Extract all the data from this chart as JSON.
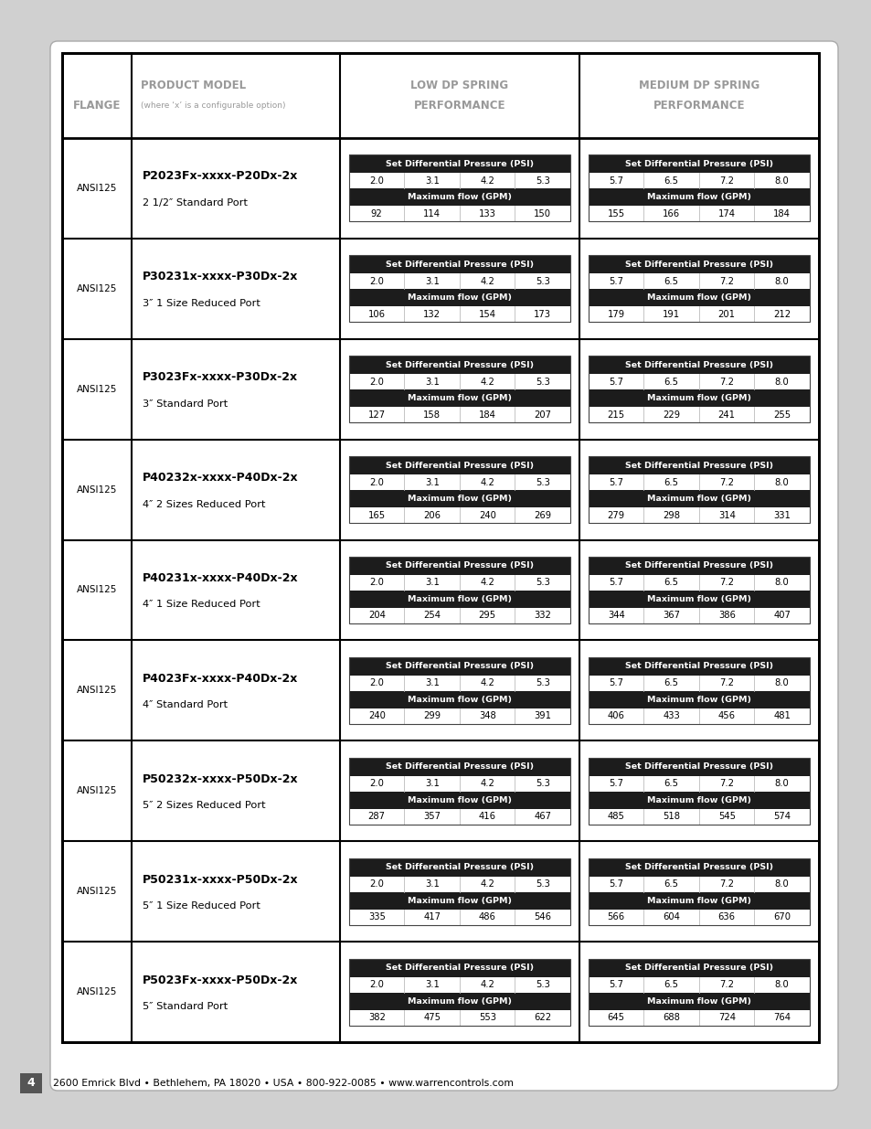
{
  "background_color": "#ffffff",
  "table_border_color": "#000000",
  "header_bg": "#ffffff",
  "cell_dark_bg": "#1a1a1a",
  "header_text_color": "#aaaaaa",
  "page_bg": "#d0d0d0",
  "footer_text": "2600 Emrick Blvd • Bethlehem, PA 18020 • USA • 800-922-0085 • www.warrencontrols.com",
  "page_number": "4",
  "col_header_flange": "FLANGE",
  "col_header_model": "PRODUCT MODEL",
  "col_header_model_sub": "(where ‘x’ is a configurable option)",
  "col_header_low1": "LOW DP SPRING",
  "col_header_low2": "PERFORMANCE",
  "col_header_med1": "MEDIUM DP SPRING",
  "col_header_med2": "PERFORMANCE",
  "low_psi": [
    "2.0",
    "3.1",
    "4.2",
    "5.3"
  ],
  "med_psi": [
    "5.7",
    "6.5",
    "7.2",
    "8.0"
  ],
  "rows": [
    {
      "flange": "ANSI125",
      "model": "P2023Fx-xxxx-P20Dx-2x",
      "port": "2 1/2″ Standard Port",
      "low_gpm": [
        92,
        114,
        133,
        150
      ],
      "med_gpm": [
        155,
        166,
        174,
        184
      ]
    },
    {
      "flange": "ANSI125",
      "model": "P30231x-xxxx-P30Dx-2x",
      "port": "3″ 1 Size Reduced Port",
      "low_gpm": [
        106,
        132,
        154,
        173
      ],
      "med_gpm": [
        179,
        191,
        201,
        212
      ]
    },
    {
      "flange": "ANSI125",
      "model": "P3023Fx-xxxx-P30Dx-2x",
      "port": "3″ Standard Port",
      "low_gpm": [
        127,
        158,
        184,
        207
      ],
      "med_gpm": [
        215,
        229,
        241,
        255
      ]
    },
    {
      "flange": "ANSI125",
      "model": "P40232x-xxxx-P40Dx-2x",
      "port": "4″ 2 Sizes Reduced Port",
      "low_gpm": [
        165,
        206,
        240,
        269
      ],
      "med_gpm": [
        279,
        298,
        314,
        331
      ]
    },
    {
      "flange": "ANSI125",
      "model": "P40231x-xxxx-P40Dx-2x",
      "port": "4″ 1 Size Reduced Port",
      "low_gpm": [
        204,
        254,
        295,
        332
      ],
      "med_gpm": [
        344,
        367,
        386,
        407
      ]
    },
    {
      "flange": "ANSI125",
      "model": "P4023Fx-xxxx-P40Dx-2x",
      "port": "4″ Standard Port",
      "low_gpm": [
        240,
        299,
        348,
        391
      ],
      "med_gpm": [
        406,
        433,
        456,
        481
      ]
    },
    {
      "flange": "ANSI125",
      "model": "P50232x-xxxx-P50Dx-2x",
      "port": "5″ 2 Sizes Reduced Port",
      "low_gpm": [
        287,
        357,
        416,
        467
      ],
      "med_gpm": [
        485,
        518,
        545,
        574
      ]
    },
    {
      "flange": "ANSI125",
      "model": "P50231x-xxxx-P50Dx-2x",
      "port": "5″ 1 Size Reduced Port",
      "low_gpm": [
        335,
        417,
        486,
        546
      ],
      "med_gpm": [
        566,
        604,
        636,
        670
      ]
    },
    {
      "flange": "ANSI125",
      "model": "P5023Fx-xxxx-P50Dx-2x",
      "port": "5″ Standard Port",
      "low_gpm": [
        382,
        475,
        553,
        622
      ],
      "med_gpm": [
        645,
        688,
        724,
        764
      ]
    }
  ]
}
